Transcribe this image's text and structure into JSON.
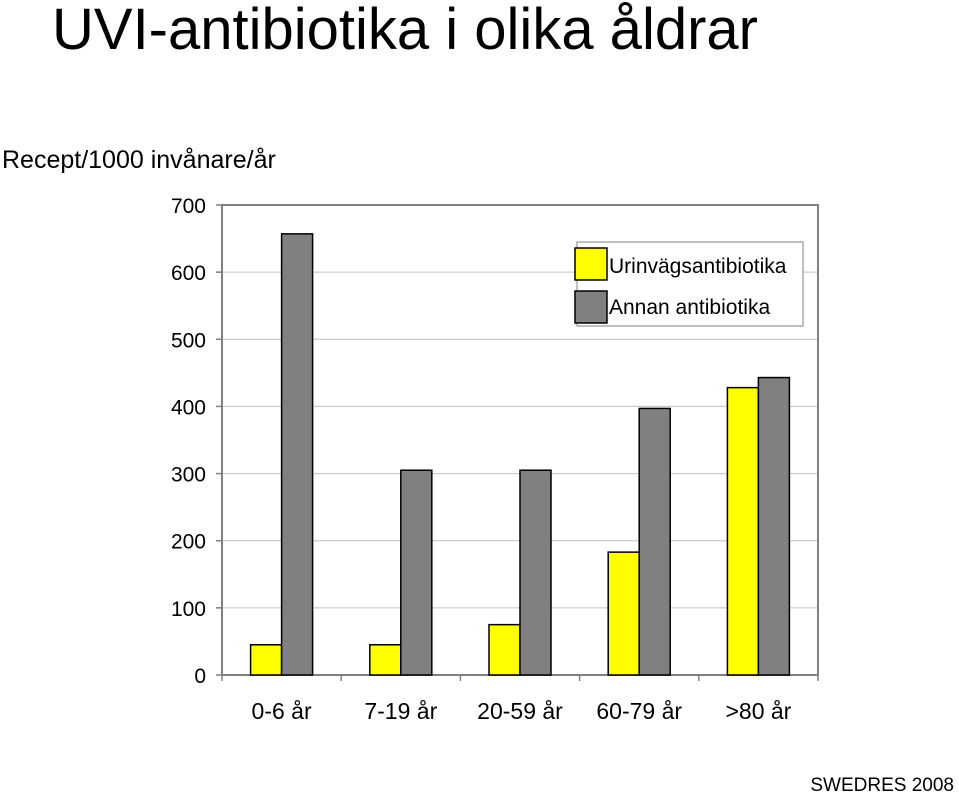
{
  "title": "UVI-antibiotika i olika åldrar",
  "source": "SWEDRES 2008",
  "colors": {
    "series1": "#ffff00",
    "series2": "#808080",
    "grid": "#c0c0c0",
    "frame": "#808080"
  },
  "chart_data": {
    "type": "bar",
    "title": "UVI-antibiotika i olika åldrar",
    "ylabel": "Recept/1000 invånare/år",
    "xlabel": "",
    "ylim": [
      0,
      700
    ],
    "yticks": [
      0,
      100,
      200,
      300,
      400,
      500,
      600,
      700
    ],
    "grid": true,
    "legend": "top-right",
    "categories": [
      "0-6 år",
      "7-19 år",
      "20-59 år",
      "60-79 år",
      ">80 år"
    ],
    "series": [
      {
        "name": "Urinvägsantibiotika",
        "color": "#ffff00",
        "values": [
          45,
          45,
          75,
          183,
          428
        ]
      },
      {
        "name": "Annan antibiotika",
        "color": "#808080",
        "values": [
          657,
          305,
          305,
          397,
          443
        ]
      }
    ]
  }
}
